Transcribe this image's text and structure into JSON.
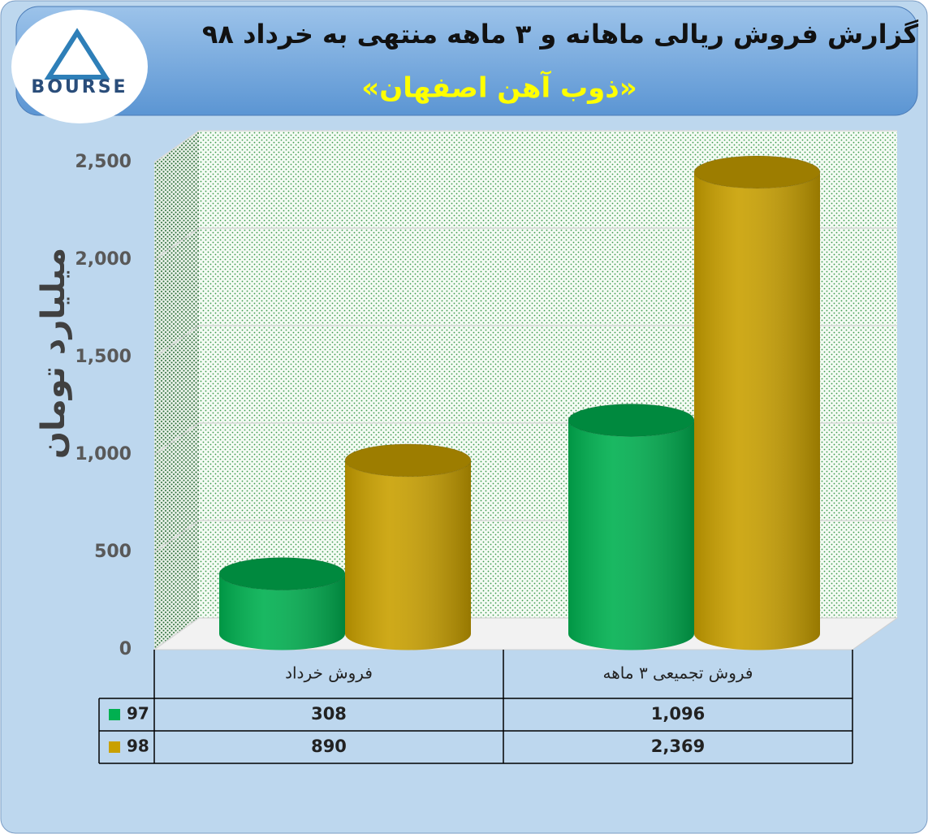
{
  "chart_data": {
    "type": "bar",
    "style": "cylinder-3d",
    "title": "گزارش فروش ریالی ماهانه و ۳ ماهه منتهی به خرداد ۹۸",
    "subtitle": "«ذوب آهن اصفهان»",
    "logo": "BOURSE",
    "y_label": "میلیارد تومان",
    "categories": [
      "فروش خرداد",
      "فروش تجمیعی ۳ ماهه"
    ],
    "series": [
      {
        "name": "97",
        "color": "#00b050",
        "values": [
          308,
          1096
        ],
        "value_labels": [
          "308",
          "1,096"
        ]
      },
      {
        "name": "98",
        "color": "#c9a000",
        "values": [
          890,
          2369
        ],
        "value_labels": [
          "890",
          "2,369"
        ]
      }
    ],
    "ylim": [
      0,
      2500
    ],
    "yticks": [
      0,
      500,
      {
        "value": 1000,
        "label": "1,000"
      },
      {
        "value": 1500,
        "label": "1,500"
      },
      {
        "value": 2000,
        "label": "2,000"
      },
      {
        "value": 2500,
        "label": "2,500"
      }
    ],
    "grid": true
  }
}
